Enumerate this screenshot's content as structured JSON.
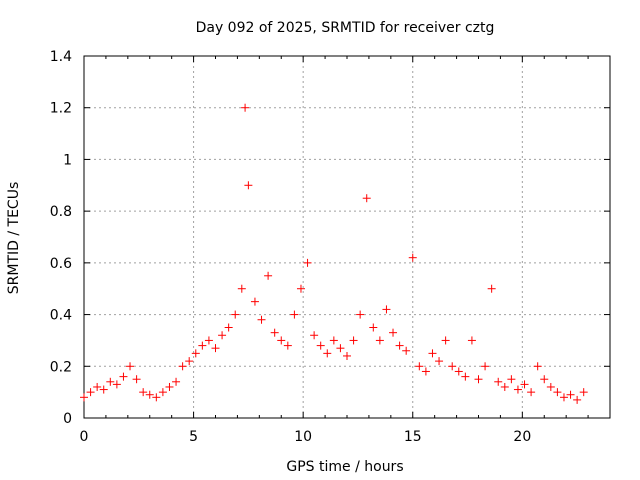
{
  "chart_data": {
    "type": "scatter",
    "title": "Day 092 of 2025, SRMTID for receiver cztg",
    "xlabel": "GPS time / hours",
    "ylabel": "SRMTID / TECUs",
    "xlim": [
      0,
      24
    ],
    "ylim": [
      0,
      1.4
    ],
    "x_ticks": [
      "0",
      "5",
      "10",
      "15",
      "20"
    ],
    "y_ticks": [
      "0",
      "0.2",
      "0.4",
      "0.6",
      "0.8",
      "1",
      "1.2",
      "1.4"
    ],
    "grid": true,
    "marker": "+",
    "color": "#ff0000",
    "series": [
      {
        "name": "SRMTID",
        "x": [
          0.0,
          0.3,
          0.6,
          0.9,
          1.2,
          1.5,
          1.8,
          2.1,
          2.4,
          2.7,
          3.0,
          3.3,
          3.6,
          3.9,
          4.2,
          4.5,
          4.8,
          5.1,
          5.4,
          5.7,
          6.0,
          6.3,
          6.6,
          6.9,
          7.2,
          7.35,
          7.5,
          7.8,
          8.1,
          8.4,
          8.7,
          9.0,
          9.3,
          9.6,
          9.9,
          10.2,
          10.5,
          10.8,
          11.1,
          11.4,
          11.7,
          12.0,
          12.3,
          12.6,
          12.9,
          13.2,
          13.5,
          13.8,
          14.1,
          14.4,
          14.7,
          15.0,
          15.3,
          15.6,
          15.9,
          16.2,
          16.5,
          16.8,
          17.1,
          17.4,
          17.7,
          18.0,
          18.3,
          18.6,
          18.9,
          19.2,
          19.5,
          19.8,
          20.1,
          20.4,
          20.7,
          21.0,
          21.3,
          21.6,
          21.9,
          22.2,
          22.5,
          22.8
        ],
        "y": [
          0.08,
          0.1,
          0.12,
          0.11,
          0.14,
          0.13,
          0.16,
          0.2,
          0.15,
          0.1,
          0.09,
          0.08,
          0.1,
          0.12,
          0.14,
          0.2,
          0.22,
          0.25,
          0.28,
          0.3,
          0.27,
          0.32,
          0.35,
          0.4,
          0.5,
          1.2,
          0.9,
          0.45,
          0.38,
          0.55,
          0.33,
          0.3,
          0.28,
          0.4,
          0.5,
          0.6,
          0.32,
          0.28,
          0.25,
          0.3,
          0.27,
          0.24,
          0.3,
          0.4,
          0.85,
          0.35,
          0.3,
          0.42,
          0.33,
          0.28,
          0.26,
          0.62,
          0.2,
          0.18,
          0.25,
          0.22,
          0.3,
          0.2,
          0.18,
          0.16,
          0.3,
          0.15,
          0.2,
          0.5,
          0.14,
          0.12,
          0.15,
          0.11,
          0.13,
          0.1,
          0.2,
          0.15,
          0.12,
          0.1,
          0.08,
          0.09,
          0.07,
          0.1
        ]
      }
    ]
  }
}
